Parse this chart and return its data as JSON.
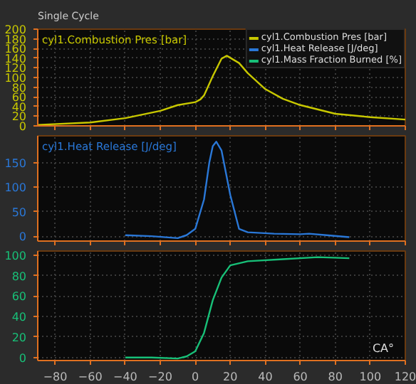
{
  "chart_data": [
    {
      "type": "line",
      "title": "Single Cycle",
      "legend": "top right",
      "grid": true,
      "tick_labels": "y",
      "xlim": [
        -90,
        120
      ],
      "xticks": [
        -80,
        -60,
        -40,
        -20,
        0,
        20,
        40,
        60,
        80,
        100,
        120
      ],
      "ylim": [
        0,
        200
      ],
      "yticks": [
        0,
        20,
        40,
        60,
        80,
        100,
        120,
        140,
        160,
        180,
        200
      ],
      "series": [
        {
          "name": "cyl1.Combustion Pres [bar]",
          "color": "#c8c800",
          "x": [
            -90,
            -60,
            -40,
            -20,
            -10,
            0,
            3,
            5,
            10,
            15,
            18,
            25,
            30,
            40,
            50,
            60,
            80,
            100,
            120
          ],
          "values": [
            2,
            7,
            16,
            31,
            43,
            49,
            55,
            63,
            103,
            139,
            145,
            130,
            109,
            76,
            56,
            43,
            25,
            18,
            13
          ]
        }
      ]
    },
    {
      "type": "line",
      "grid": true,
      "tick_labels": "y",
      "xlim": [
        -90,
        120
      ],
      "xticks": [
        -80,
        -60,
        -40,
        -20,
        0,
        20,
        40,
        60,
        80,
        100,
        120
      ],
      "ylim": [
        -10,
        205
      ],
      "yticks": [
        0,
        50,
        100,
        150
      ],
      "series": [
        {
          "name": "cyl1.Heat Release [J/deg]",
          "color": "#2a78d8",
          "x": [
            -40,
            -25,
            -10,
            -5,
            0,
            5,
            8,
            10,
            12,
            15,
            20,
            25,
            30,
            45,
            60,
            65,
            75,
            88
          ],
          "values": [
            2,
            0,
            -4,
            2,
            15,
            75,
            150,
            184,
            193,
            175,
            84,
            15,
            8,
            5,
            4,
            5,
            2,
            -2
          ]
        }
      ]
    },
    {
      "type": "line",
      "grid": true,
      "xlabel": "CA°",
      "xlim": [
        -90,
        120
      ],
      "xticks": [
        -80,
        -60,
        -40,
        -20,
        0,
        20,
        40,
        60,
        80,
        100,
        120
      ],
      "ylim": [
        -3,
        104
      ],
      "yticks": [
        0,
        20,
        40,
        60,
        80,
        100
      ],
      "series": [
        {
          "name": "cyl1.Mass Fraction Burned [%]",
          "color": "#18c078",
          "x": [
            -40,
            -25,
            -10,
            -5,
            0,
            5,
            10,
            15,
            20,
            30,
            50,
            70,
            88
          ],
          "values": [
            0,
            0,
            -1,
            1,
            6,
            24,
            56,
            78,
            90,
            94,
            96,
            98,
            97
          ]
        }
      ]
    }
  ]
}
